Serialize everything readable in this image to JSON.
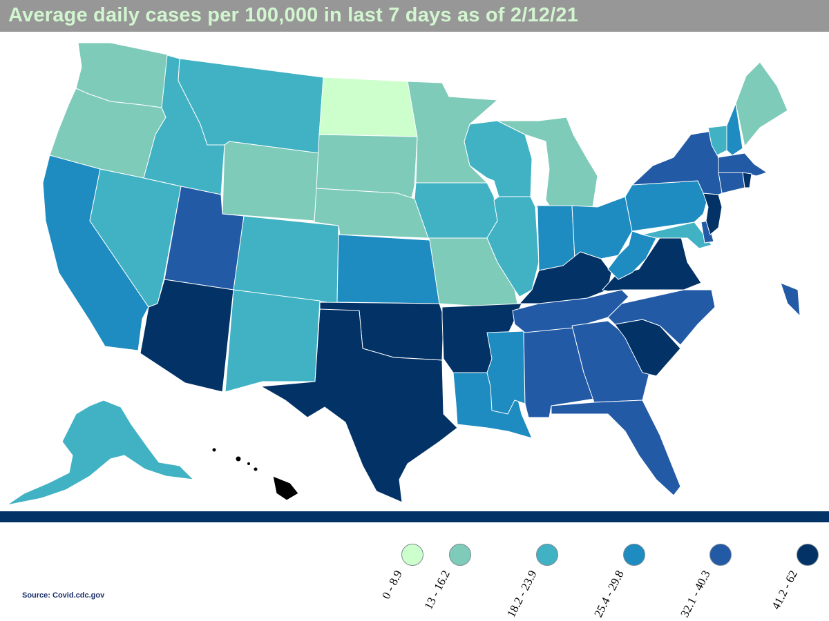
{
  "title": "Average daily cases per 100,000 in last 7 days as of 2/12/21",
  "source": "Source:  Covid.cdc.gov",
  "legend": [
    {
      "label": "0 - 8.9",
      "color": "#ccffcc"
    },
    {
      "label": "13 - 16.2",
      "color": "#7ecbb9"
    },
    {
      "label": "18.2 - 23.9",
      "color": "#41b2c4"
    },
    {
      "label": "25.4 - 29.8",
      "color": "#1e8cc0"
    },
    {
      "label": "32.1 - 40.3",
      "color": "#225aa6"
    },
    {
      "label": "41.2 - 62",
      "color": "#033266"
    }
  ],
  "state_classes": {
    "ND": 0,
    "WA": 1,
    "OR": 1,
    "WY": 1,
    "SD": 1,
    "NE": 1,
    "MN": 1,
    "MO": 1,
    "MI": 1,
    "ME": 1,
    "ID": 2,
    "MT": 2,
    "NV": 2,
    "CO": 2,
    "NM": 2,
    "IA": 2,
    "WI": 2,
    "IL": 2,
    "VT": 2,
    "MD": 2,
    "AK": 2,
    "CA": 3,
    "KS": 3,
    "MS": 3,
    "LA": 3,
    "IN": 3,
    "OH": 3,
    "WV": 3,
    "PA": 3,
    "NH": 3,
    "UT": 4,
    "NY": 4,
    "MA": 4,
    "CT": 4,
    "NC": 4,
    "TN": 4,
    "AL": 4,
    "GA": 4,
    "FL": 4,
    "DE": 4,
    "AZ": 5,
    "TX": 5,
    "OK": 5,
    "AR": 5,
    "KY": 5,
    "VA": 5,
    "SC": 5,
    "NJ": 5,
    "RI": 5
  }
}
